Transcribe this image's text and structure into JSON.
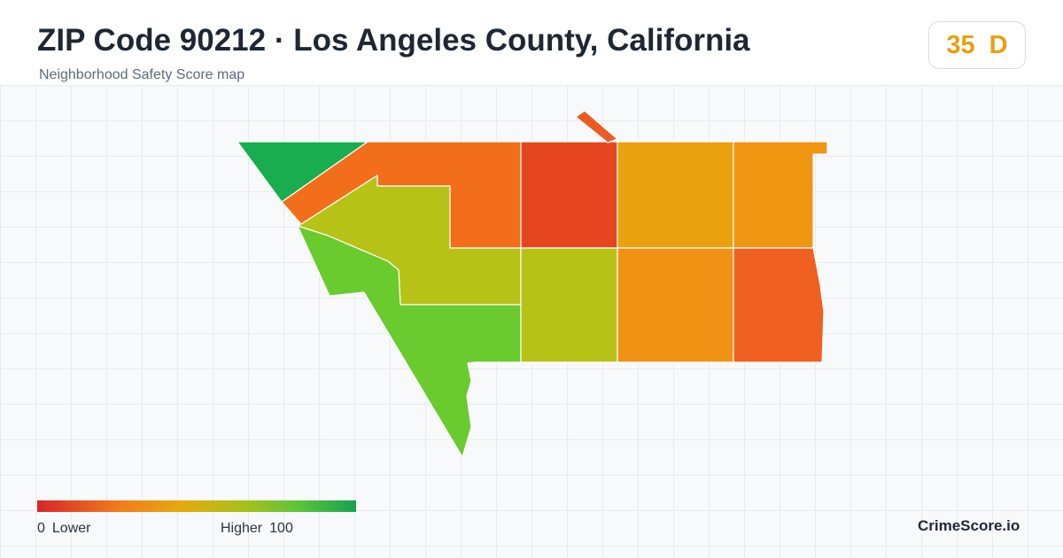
{
  "header": {
    "title": "ZIP Code 90212 · Los Angeles County, California",
    "subtitle": "Neighborhood Safety Score map"
  },
  "score": {
    "value": "35",
    "grade": "D",
    "color": "#e9a00c"
  },
  "map": {
    "region_colors": {
      "northwest-wedge": "#1aad50",
      "north-band": "#f26e1b",
      "north-central": "#e6461f",
      "northeast-1": "#eaa10e",
      "northeast-2": "#ef9512",
      "central-yellowgreen": "#b6c316",
      "southwest-green": "#6acb2e",
      "central-mid": "#b6c316",
      "southeast-1": "#f19214",
      "southeast-2": "#ef5f1f",
      "north-spur": "#ec5a22"
    }
  },
  "legend": {
    "min_value": "0",
    "min_label": "Lower",
    "max_label": "Higher",
    "max_value": "100",
    "gradient_colors": [
      "#d7262a",
      "#f07a1c",
      "#e6a90f",
      "#a6c11a",
      "#5cc43a",
      "#15a24f"
    ]
  },
  "brand": "CrimeScore.io"
}
